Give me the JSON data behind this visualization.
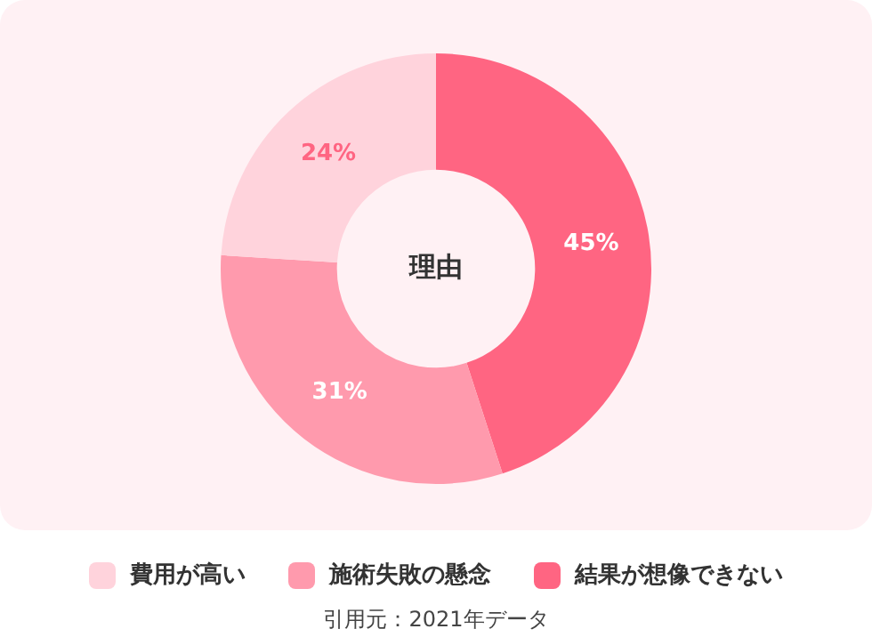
{
  "chart_data": {
    "type": "donut",
    "title": "理由",
    "categories": [
      "費用が高い",
      "施術失敗の懸念",
      "結果が想像できない"
    ],
    "values": [
      24,
      31,
      45
    ],
    "colors": [
      "#ffd3dc",
      "#ff9aad",
      "#ff6582"
    ],
    "value_labels": [
      "24%",
      "31%",
      "45%"
    ],
    "legend": "bottom",
    "annotations": [
      "引用元：2021年データ"
    ]
  }
}
